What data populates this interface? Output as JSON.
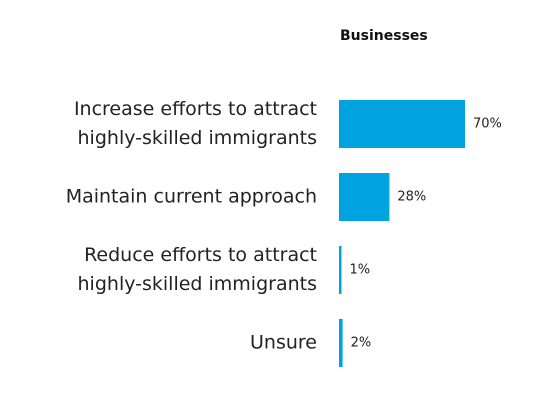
{
  "chart_data": {
    "type": "bar",
    "orientation": "horizontal",
    "title": "Businesses",
    "categories": [
      "Increase efforts to attract\nhighly-skilled immigrants",
      "Maintain current approach",
      "Reduce efforts to attract\nhighly-skilled immigrants",
      "Unsure"
    ],
    "values": [
      70,
      28,
      1,
      2
    ],
    "value_labels": [
      "70%",
      "28%",
      "1%",
      "2%"
    ],
    "color": "#00a3e0"
  }
}
